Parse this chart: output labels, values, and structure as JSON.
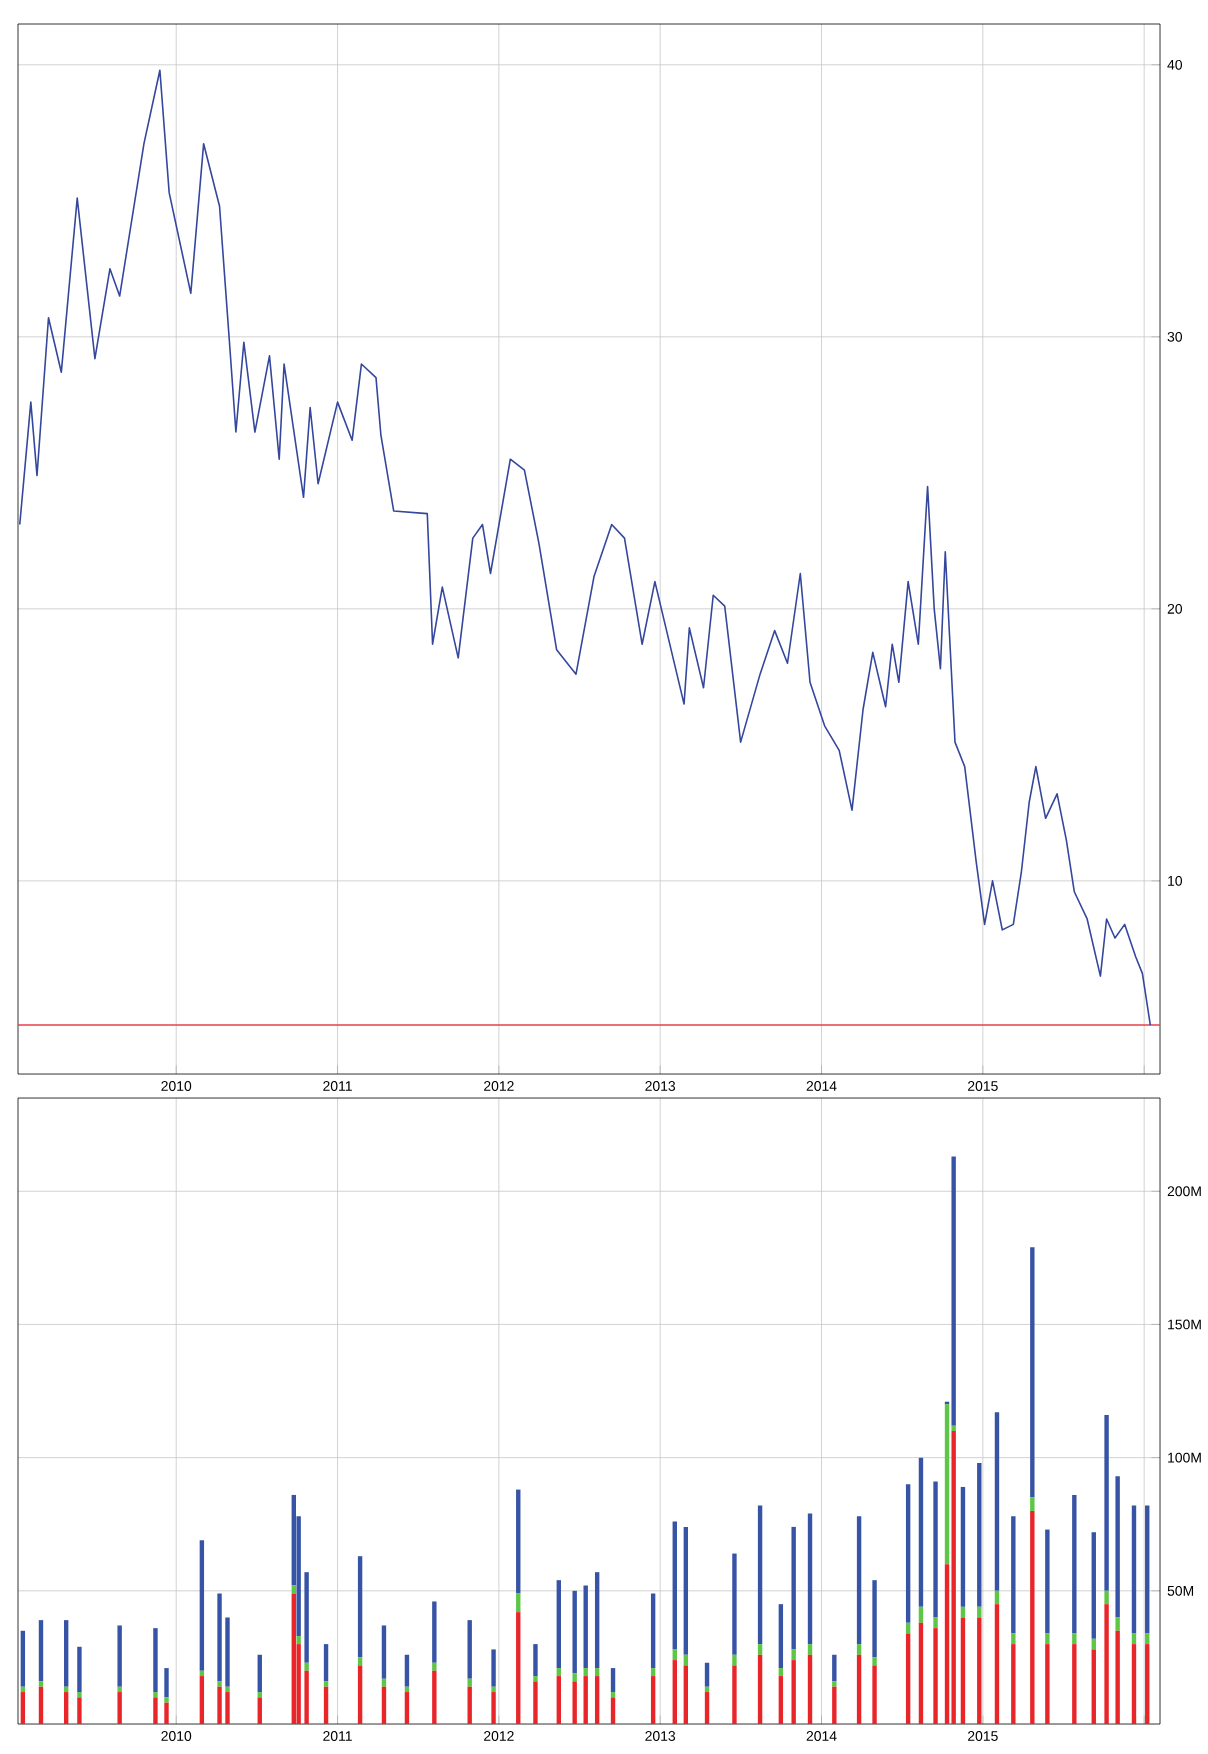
{
  "chart_data": [
    {
      "type": "line",
      "color": "#34479c",
      "grid": true,
      "xlim": [
        "2009-01-08",
        "2016-02-06"
      ],
      "ylim": [
        2.9,
        41.5
      ],
      "xticks": [
        {
          "value": "2010-01-01",
          "label": "2010"
        },
        {
          "value": "2011-01-01",
          "label": "2011"
        },
        {
          "value": "2012-01-01",
          "label": "2012"
        },
        {
          "value": "2013-01-01",
          "label": "2013"
        },
        {
          "value": "2014-01-01",
          "label": "2014"
        },
        {
          "value": "2015-01-01",
          "label": "2015"
        },
        {
          "value": "2016-01-01",
          "label": null
        }
      ],
      "yticks": [
        10,
        20,
        30,
        40
      ],
      "ref_lines": [
        {
          "axis": "y",
          "value": 4.7,
          "label": null,
          "color": "#e8414a"
        }
      ],
      "x": [
        "2009-01-12",
        "2009-02-06",
        "2009-02-20",
        "2009-03-18",
        "2009-04-16",
        "2009-05-22",
        "2009-07-01",
        "2009-08-04",
        "2009-08-26",
        "2009-10-20",
        "2009-11-25",
        "2009-12-16",
        "2010-02-03",
        "2010-03-04",
        "2010-04-09",
        "2010-05-01",
        "2010-05-16",
        "2010-06-03",
        "2010-06-28",
        "2010-07-31",
        "2010-08-22",
        "2010-09-02",
        "2010-10-16",
        "2010-10-31",
        "2010-11-18",
        "2011-01-01",
        "2011-02-03",
        "2011-02-24",
        "2011-03-29",
        "2011-04-09",
        "2011-05-08",
        "2011-07-23",
        "2011-08-04",
        "2011-08-26",
        "2011-10-01",
        "2011-11-03",
        "2011-11-25",
        "2011-12-13",
        "2012-01-27",
        "2012-02-28",
        "2012-04-01",
        "2012-05-11",
        "2012-06-24",
        "2012-08-04",
        "2012-09-13",
        "2012-10-12",
        "2012-11-21",
        "2012-12-20",
        "2013-02-24",
        "2013-03-08",
        "2013-04-09",
        "2013-05-01",
        "2013-05-27",
        "2013-07-02",
        "2013-08-15",
        "2013-09-17",
        "2013-10-16",
        "2013-11-14",
        "2013-12-06",
        "2014-01-08",
        "2014-02-10",
        "2014-03-11",
        "2014-04-05",
        "2014-04-27",
        "2014-05-26",
        "2014-06-10",
        "2014-06-25",
        "2014-07-16",
        "2014-08-08",
        "2014-08-29",
        "2014-09-13",
        "2014-09-27",
        "2014-10-08",
        "2014-10-30",
        "2014-11-21",
        "2014-12-17",
        "2015-01-05",
        "2015-01-23",
        "2015-02-14",
        "2015-03-11",
        "2015-03-29",
        "2015-04-16",
        "2015-05-01",
        "2015-05-23",
        "2015-06-18",
        "2015-07-09",
        "2015-07-27",
        "2015-08-25",
        "2015-09-24",
        "2015-10-08",
        "2015-10-27",
        "2015-11-18",
        "2015-12-13",
        "2015-12-28",
        "2016-01-15"
      ],
      "values": [
        23.1,
        27.6,
        24.9,
        30.7,
        28.7,
        35.1,
        29.2,
        32.5,
        31.5,
        37.1,
        39.8,
        35.3,
        31.6,
        37.1,
        34.8,
        29.9,
        26.5,
        29.8,
        26.5,
        29.3,
        25.5,
        29.0,
        24.1,
        27.4,
        24.6,
        27.6,
        26.2,
        29.0,
        28.5,
        26.4,
        23.6,
        23.5,
        18.7,
        20.8,
        18.2,
        22.6,
        23.1,
        21.3,
        25.5,
        25.1,
        22.4,
        18.5,
        17.6,
        21.2,
        23.1,
        22.6,
        18.7,
        21.0,
        16.5,
        19.3,
        17.1,
        20.5,
        20.1,
        15.1,
        17.6,
        19.2,
        18.0,
        21.3,
        17.3,
        15.7,
        14.8,
        12.6,
        16.3,
        18.4,
        16.4,
        18.7,
        17.3,
        21.0,
        18.7,
        24.5,
        20.0,
        17.8,
        22.1,
        15.1,
        14.2,
        10.7,
        8.4,
        10.0,
        8.2,
        8.4,
        10.3,
        12.9,
        14.2,
        12.3,
        13.2,
        11.5,
        9.6,
        8.6,
        6.5,
        8.6,
        7.9,
        8.4,
        7.2,
        6.6,
        4.7
      ]
    },
    {
      "type": "bar",
      "grid": true,
      "stacked": true,
      "xlim": [
        "2009-01-08",
        "2016-02-06"
      ],
      "ylim": [
        0,
        235
      ],
      "xticks": [
        {
          "value": "2010-01-01",
          "label": "2010"
        },
        {
          "value": "2011-01-01",
          "label": "2011"
        },
        {
          "value": "2012-01-01",
          "label": "2012"
        },
        {
          "value": "2013-01-01",
          "label": "2013"
        },
        {
          "value": "2014-01-01",
          "label": "2014"
        },
        {
          "value": "2015-01-01",
          "label": "2015"
        },
        {
          "value": "2016-01-01",
          "label": null
        }
      ],
      "yticks": [
        {
          "value": 50,
          "label": "50M"
        },
        {
          "value": 100,
          "label": "100M"
        },
        {
          "value": 150,
          "label": "150M"
        },
        {
          "value": 200,
          "label": "200M"
        }
      ],
      "x": [
        "2009-01-19",
        "2009-03-01",
        "2009-04-27",
        "2009-05-27",
        "2009-08-26",
        "2009-11-15",
        "2009-12-10",
        "2010-02-28",
        "2010-04-09",
        "2010-04-27",
        "2010-07-09",
        "2010-09-24",
        "2010-10-05",
        "2010-10-23",
        "2010-12-06",
        "2011-02-21",
        "2011-04-16",
        "2011-06-07",
        "2011-08-08",
        "2011-10-27",
        "2011-12-20",
        "2012-02-14",
        "2012-03-24",
        "2012-05-16",
        "2012-06-21",
        "2012-07-16",
        "2012-08-11",
        "2012-09-16",
        "2012-12-16",
        "2013-02-03",
        "2013-02-28",
        "2013-04-17",
        "2013-06-18",
        "2013-08-15",
        "2013-10-01",
        "2013-10-30",
        "2013-12-06",
        "2014-01-30",
        "2014-03-27",
        "2014-05-01",
        "2014-07-16",
        "2014-08-14",
        "2014-09-16",
        "2014-10-12",
        "2014-10-27",
        "2014-11-17",
        "2014-12-24",
        "2015-02-02",
        "2015-03-11",
        "2015-04-23",
        "2015-05-27",
        "2015-07-27",
        "2015-09-09",
        "2015-10-08",
        "2015-11-02",
        "2015-12-09",
        "2016-01-08"
      ],
      "series": [
        {
          "color": "#e8262a",
          "values": [
            12,
            14,
            12,
            10,
            12,
            10,
            8,
            18,
            14,
            12,
            10,
            49,
            30,
            20,
            14,
            22,
            14,
            12,
            20,
            14,
            12,
            42,
            16,
            18,
            16,
            18,
            18,
            10,
            18,
            24,
            22,
            12,
            22,
            26,
            18,
            24,
            26,
            14,
            26,
            22,
            34,
            38,
            36,
            60,
            110,
            40,
            40,
            45,
            30,
            80,
            30,
            30,
            28,
            45,
            35,
            30,
            30
          ]
        },
        {
          "color": "#5cc645",
          "values": [
            2,
            2,
            2,
            2,
            2,
            2,
            2,
            2,
            2,
            2,
            2,
            3,
            3,
            3,
            2,
            3,
            3,
            2,
            3,
            3,
            2,
            7,
            2,
            3,
            3,
            3,
            3,
            2,
            3,
            4,
            4,
            2,
            4,
            4,
            3,
            4,
            4,
            2,
            4,
            3,
            4,
            6,
            4,
            60,
            2,
            4,
            4,
            5,
            4,
            5,
            4,
            4,
            4,
            5,
            5,
            4,
            4
          ]
        },
        {
          "color": "#3653a5",
          "values": [
            21,
            23,
            25,
            17,
            23,
            24,
            11,
            49,
            33,
            26,
            14,
            34,
            45,
            34,
            14,
            38,
            20,
            12,
            23,
            22,
            14,
            39,
            12,
            33,
            31,
            31,
            36,
            9,
            28,
            48,
            48,
            9,
            38,
            52,
            24,
            46,
            49,
            10,
            48,
            29,
            52,
            56,
            51,
            1,
            101,
            45,
            54,
            67,
            44,
            94,
            39,
            52,
            40,
            66,
            53,
            48,
            48
          ]
        }
      ]
    }
  ]
}
